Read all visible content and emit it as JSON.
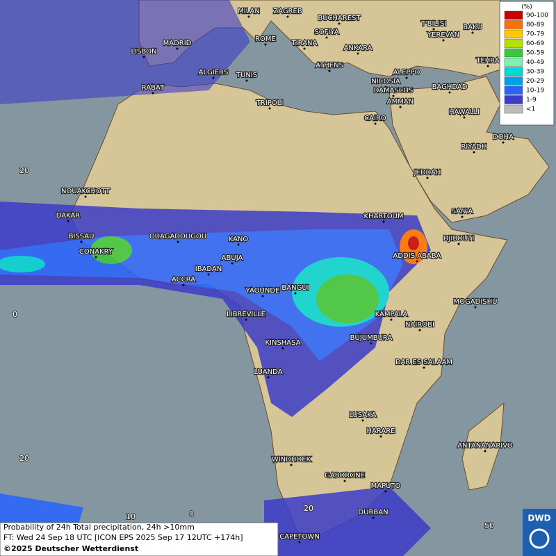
{
  "legend": {
    "title": "(%)",
    "items": [
      {
        "label": "90-100",
        "color": "#c80000"
      },
      {
        "label": "80-89",
        "color": "#ff7000"
      },
      {
        "label": "70-79",
        "color": "#ffc800"
      },
      {
        "label": "60-69",
        "color": "#b4e000"
      },
      {
        "label": "50-59",
        "color": "#3cc83c"
      },
      {
        "label": "40-49",
        "color": "#80f0b0"
      },
      {
        "label": "30-39",
        "color": "#00d8d8"
      },
      {
        "label": "20-29",
        "color": "#00a0e8"
      },
      {
        "label": "10-19",
        "color": "#2864ff"
      },
      {
        "label": "1-9",
        "color": "#3c3cc8"
      },
      {
        "label": "<1",
        "color": "#bdbdbd"
      }
    ]
  },
  "cities": [
    "MILAN",
    "ZAGREB",
    "BUCHAREST",
    "T'BILISI",
    "BAKU",
    "SOFIYA",
    "YEREVAN",
    "ROME",
    "MADRID",
    "TIRANA",
    "ANKARA",
    "LISBON",
    "TEHRA",
    "ATHENS",
    "ALGIERS",
    "TUNIS",
    "ALEPPO",
    "RABAT",
    "NICOSIA",
    "BAGHDAD",
    "DAMASCUS",
    "AMMAN",
    "TRIPOLI",
    "HAWALLI",
    "CAIRO",
    "DOHA",
    "RIYADH",
    "JEDDAH",
    "NOUAKCHOTT",
    "SAN'A",
    "DAKAR",
    "KHARTOUM",
    "BISSAU",
    "OUAGADOUGOU",
    "KANO",
    "DJIBOUTI",
    "CONAKRY",
    "ABUJA",
    "ADDIS ABABA",
    "IBADAN",
    "ACCRA",
    "YAOUNDE",
    "BANGUI",
    "MOGADISHU",
    "LIBREVILLE",
    "KAMPALA",
    "NAIROBI",
    "BUJUMBURA",
    "KINSHASA",
    "DAR ES SALAAM",
    "LUANDA",
    "LUSAKA",
    "HARARE",
    "ANTANANARIVO",
    "WINDHOEK",
    "GABORONE",
    "MAPUTO",
    "DURBAN",
    "CAPETOWN"
  ],
  "graticule": [
    "20",
    "0",
    "20",
    "10",
    "0",
    "20",
    "50"
  ],
  "caption": [
    "Probability of 24h Total precipitation, 24h >10mm",
    "FT: Wed 24 Sep 18 UTC [ICON EPS 2025 Sep 17 12UTC +174h]",
    "©2025 Deutscher Wetterdienst"
  ],
  "logo": "DWD"
}
